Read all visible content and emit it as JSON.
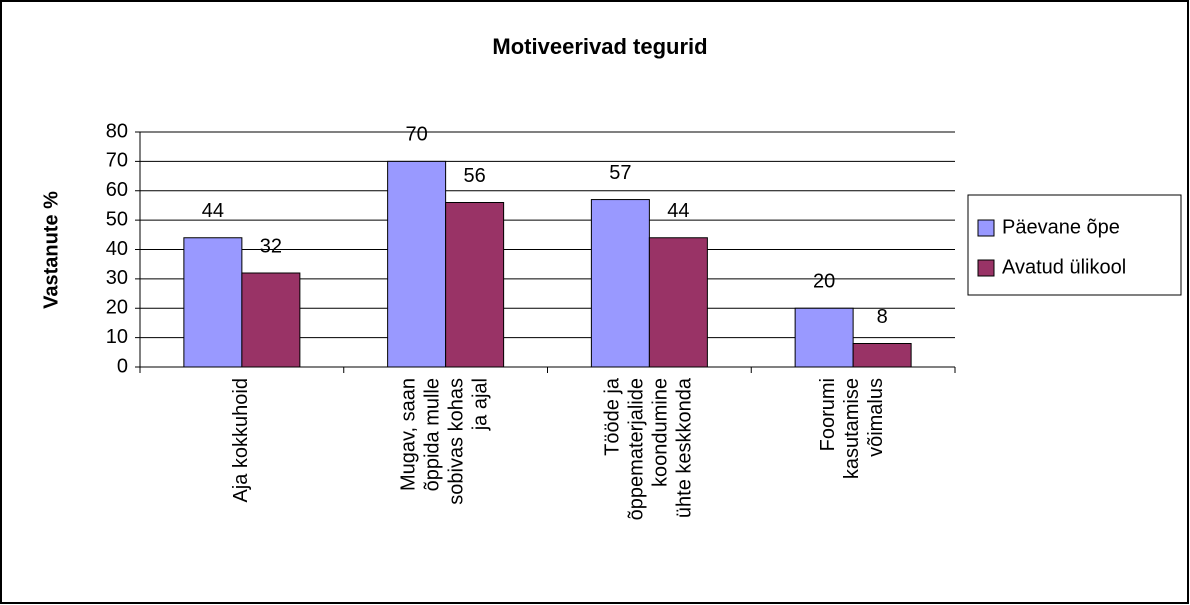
{
  "chart_data": {
    "type": "bar",
    "title": "Motiveerivad tegurid",
    "y_label": "Vastanute %",
    "categories": [
      "Aja kokkuhoid",
      "Mugav, saan\nõppida mulle\nsobivas kohas\nja ajal",
      "Tööde ja\nõppematerjalide\nkoondumine\nühte keskkonda",
      "Foorumi\nkasutamise\nvõimalus"
    ],
    "series": [
      {
        "name": "Päevane õpe",
        "color": "#9999ff",
        "values": [
          44,
          70,
          57,
          20
        ]
      },
      {
        "name": "Avatud ülikool",
        "color": "#993366",
        "values": [
          32,
          56,
          44,
          8
        ]
      }
    ],
    "ylim": [
      0,
      80
    ],
    "yticks": [
      0,
      10,
      20,
      30,
      40,
      50,
      60,
      70,
      80
    ],
    "grid": true,
    "legend": "right"
  }
}
